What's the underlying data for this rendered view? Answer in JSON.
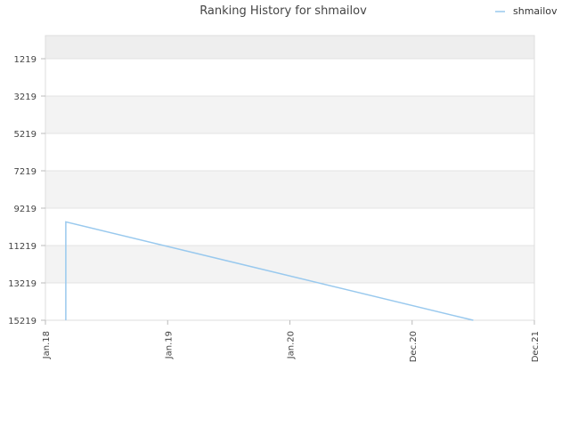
{
  "chart_data": {
    "type": "line",
    "title": "Ranking History for shmailov",
    "xlabel": "",
    "ylabel": "",
    "y_inverted": true,
    "ylim": [
      1219,
      15219
    ],
    "y_ticks": [
      1219,
      3219,
      5219,
      7219,
      9219,
      11219,
      13219,
      15219
    ],
    "x_ticks": [
      "Jan.18",
      "Jan.19",
      "Jan.20",
      "Dec.20",
      "Dec.21"
    ],
    "legend_position": "top-right",
    "grid": true,
    "series": [
      {
        "name": "shmailov",
        "color": "#99c9ee",
        "points": [
          {
            "x": "2018-03",
            "y": 15219
          },
          {
            "x": "2018-03",
            "y": 9950
          },
          {
            "x": "2021-07",
            "y": 15219
          }
        ]
      }
    ]
  }
}
